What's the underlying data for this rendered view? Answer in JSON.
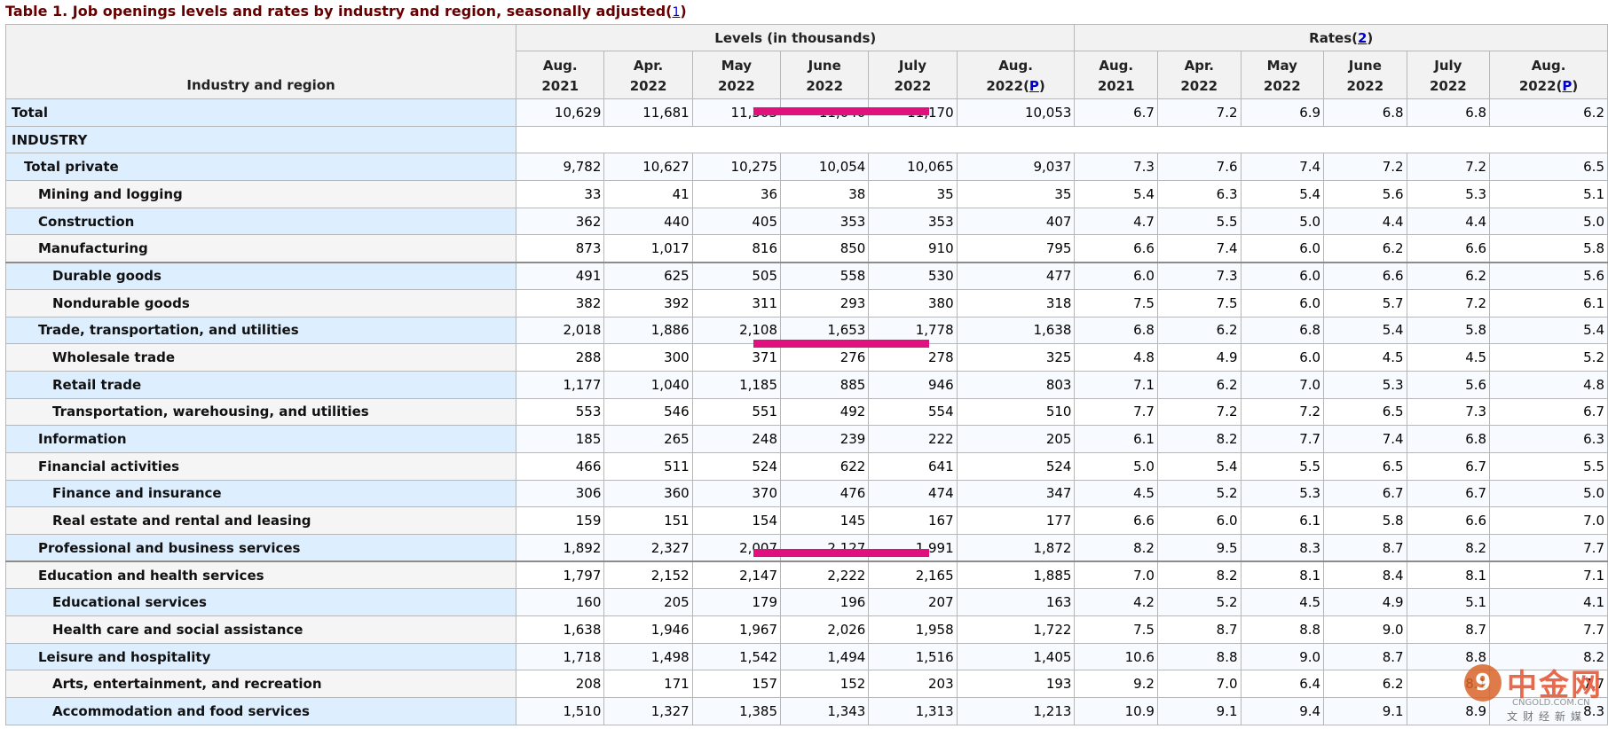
{
  "caption": {
    "text": "Table 1. Job openings levels and rates by industry and region, seasonally adjusted",
    "footnote": "1"
  },
  "header": {
    "stub": "Industry and region",
    "levels_group": "Levels (in thousands)",
    "rates_group": "Rates",
    "rates_footnote": "2",
    "levels_cols": [
      {
        "l1": "Aug.",
        "l2": "2021",
        "p": ""
      },
      {
        "l1": "Apr.",
        "l2": "2022",
        "p": ""
      },
      {
        "l1": "May",
        "l2": "2022",
        "p": ""
      },
      {
        "l1": "June",
        "l2": "2022",
        "p": ""
      },
      {
        "l1": "July",
        "l2": "2022",
        "p": ""
      },
      {
        "l1": "Aug.",
        "l2": "2022",
        "p": "P"
      }
    ],
    "rates_cols": [
      {
        "l1": "Aug.",
        "l2": "2021",
        "p": ""
      },
      {
        "l1": "Apr.",
        "l2": "2022",
        "p": ""
      },
      {
        "l1": "May",
        "l2": "2022",
        "p": ""
      },
      {
        "l1": "June",
        "l2": "2022",
        "p": ""
      },
      {
        "l1": "July",
        "l2": "2022",
        "p": ""
      },
      {
        "l1": "Aug.",
        "l2": "2022",
        "p": "P"
      }
    ]
  },
  "rows": [
    {
      "name": "Total",
      "indent": 0,
      "levels": [
        "10,629",
        "11,681",
        "11,303",
        "11,040",
        "11,170",
        "10,053"
      ],
      "rates": [
        "6.7",
        "7.2",
        "6.9",
        "6.8",
        "6.8",
        "6.2"
      ]
    },
    {
      "name": "INDUSTRY",
      "indent": 0,
      "section": true
    },
    {
      "name": "Total private",
      "indent": 1,
      "levels": [
        "9,782",
        "10,627",
        "10,275",
        "10,054",
        "10,065",
        "9,037"
      ],
      "rates": [
        "7.3",
        "7.6",
        "7.4",
        "7.2",
        "7.2",
        "6.5"
      ]
    },
    {
      "name": "Mining and logging",
      "indent": 2,
      "levels": [
        "33",
        "41",
        "36",
        "38",
        "35",
        "35"
      ],
      "rates": [
        "5.4",
        "6.3",
        "5.4",
        "5.6",
        "5.3",
        "5.1"
      ]
    },
    {
      "name": "Construction",
      "indent": 2,
      "levels": [
        "362",
        "440",
        "405",
        "353",
        "353",
        "407"
      ],
      "rates": [
        "4.7",
        "5.5",
        "5.0",
        "4.4",
        "4.4",
        "5.0"
      ]
    },
    {
      "name": "Manufacturing",
      "indent": 2,
      "levels": [
        "873",
        "1,017",
        "816",
        "850",
        "910",
        "795"
      ],
      "rates": [
        "6.6",
        "7.4",
        "6.0",
        "6.2",
        "6.6",
        "5.8"
      ]
    },
    {
      "name": "Durable goods",
      "indent": 3,
      "levels": [
        "491",
        "625",
        "505",
        "558",
        "530",
        "477"
      ],
      "rates": [
        "6.0",
        "7.3",
        "6.0",
        "6.6",
        "6.2",
        "5.6"
      ],
      "borderTop": true
    },
    {
      "name": "Nondurable goods",
      "indent": 3,
      "levels": [
        "382",
        "392",
        "311",
        "293",
        "380",
        "318"
      ],
      "rates": [
        "7.5",
        "7.5",
        "6.0",
        "5.7",
        "7.2",
        "6.1"
      ]
    },
    {
      "name": "Trade, transportation, and utilities",
      "indent": 2,
      "levels": [
        "2,018",
        "1,886",
        "2,108",
        "1,653",
        "1,778",
        "1,638"
      ],
      "rates": [
        "6.8",
        "6.2",
        "6.8",
        "5.4",
        "5.8",
        "5.4"
      ]
    },
    {
      "name": "Wholesale trade",
      "indent": 3,
      "levels": [
        "288",
        "300",
        "371",
        "276",
        "278",
        "325"
      ],
      "rates": [
        "4.8",
        "4.9",
        "6.0",
        "4.5",
        "4.5",
        "5.2"
      ]
    },
    {
      "name": "Retail trade",
      "indent": 3,
      "levels": [
        "1,177",
        "1,040",
        "1,185",
        "885",
        "946",
        "803"
      ],
      "rates": [
        "7.1",
        "6.2",
        "7.0",
        "5.3",
        "5.6",
        "4.8"
      ]
    },
    {
      "name": "Transportation, warehousing, and utilities",
      "indent": 3,
      "levels": [
        "553",
        "546",
        "551",
        "492",
        "554",
        "510"
      ],
      "rates": [
        "7.7",
        "7.2",
        "7.2",
        "6.5",
        "7.3",
        "6.7"
      ]
    },
    {
      "name": "Information",
      "indent": 2,
      "levels": [
        "185",
        "265",
        "248",
        "239",
        "222",
        "205"
      ],
      "rates": [
        "6.1",
        "8.2",
        "7.7",
        "7.4",
        "6.8",
        "6.3"
      ]
    },
    {
      "name": "Financial activities",
      "indent": 2,
      "levels": [
        "466",
        "511",
        "524",
        "622",
        "641",
        "524"
      ],
      "rates": [
        "5.0",
        "5.4",
        "5.5",
        "6.5",
        "6.7",
        "5.5"
      ]
    },
    {
      "name": "Finance and insurance",
      "indent": 3,
      "levels": [
        "306",
        "360",
        "370",
        "476",
        "474",
        "347"
      ],
      "rates": [
        "4.5",
        "5.2",
        "5.3",
        "6.7",
        "6.7",
        "5.0"
      ]
    },
    {
      "name": "Real estate and rental and leasing",
      "indent": 3,
      "levels": [
        "159",
        "151",
        "154",
        "145",
        "167",
        "177"
      ],
      "rates": [
        "6.6",
        "6.0",
        "6.1",
        "5.8",
        "6.6",
        "7.0"
      ]
    },
    {
      "name": "Professional and business services",
      "indent": 2,
      "levels": [
        "1,892",
        "2,327",
        "2,007",
        "2,127",
        "1,991",
        "1,872"
      ],
      "rates": [
        "8.2",
        "9.5",
        "8.3",
        "8.7",
        "8.2",
        "7.7"
      ]
    },
    {
      "name": "Education and health services",
      "indent": 2,
      "levels": [
        "1,797",
        "2,152",
        "2,147",
        "2,222",
        "2,165",
        "1,885"
      ],
      "rates": [
        "7.0",
        "8.2",
        "8.1",
        "8.4",
        "8.1",
        "7.1"
      ],
      "borderTop": true
    },
    {
      "name": "Educational services",
      "indent": 3,
      "levels": [
        "160",
        "205",
        "179",
        "196",
        "207",
        "163"
      ],
      "rates": [
        "4.2",
        "5.2",
        "4.5",
        "4.9",
        "5.1",
        "4.1"
      ]
    },
    {
      "name": "Health care and social assistance",
      "indent": 3,
      "levels": [
        "1,638",
        "1,946",
        "1,967",
        "2,026",
        "1,958",
        "1,722"
      ],
      "rates": [
        "7.5",
        "8.7",
        "8.8",
        "9.0",
        "8.7",
        "7.7"
      ]
    },
    {
      "name": "Leisure and hospitality",
      "indent": 2,
      "levels": [
        "1,718",
        "1,498",
        "1,542",
        "1,494",
        "1,516",
        "1,405"
      ],
      "rates": [
        "10.6",
        "8.8",
        "9.0",
        "8.7",
        "8.8",
        "8.2"
      ]
    },
    {
      "name": "Arts, entertainment, and recreation",
      "indent": 3,
      "levels": [
        "208",
        "171",
        "157",
        "152",
        "203",
        "193"
      ],
      "rates": [
        "9.2",
        "7.0",
        "6.4",
        "6.2",
        "8.1",
        "7.7"
      ]
    },
    {
      "name": "Accommodation and food services",
      "indent": 3,
      "levels": [
        "1,510",
        "1,327",
        "1,385",
        "1,343",
        "1,313",
        "1,213"
      ],
      "rates": [
        "10.9",
        "9.1",
        "9.4",
        "9.1",
        "8.9",
        "8.3"
      ]
    }
  ],
  "highlight_color": "#e0107f",
  "watermark": {
    "icon": "9",
    "brand": "中金网",
    "domain": "CNGOLD.COM.CN",
    "tagline": "文财经新媒"
  }
}
